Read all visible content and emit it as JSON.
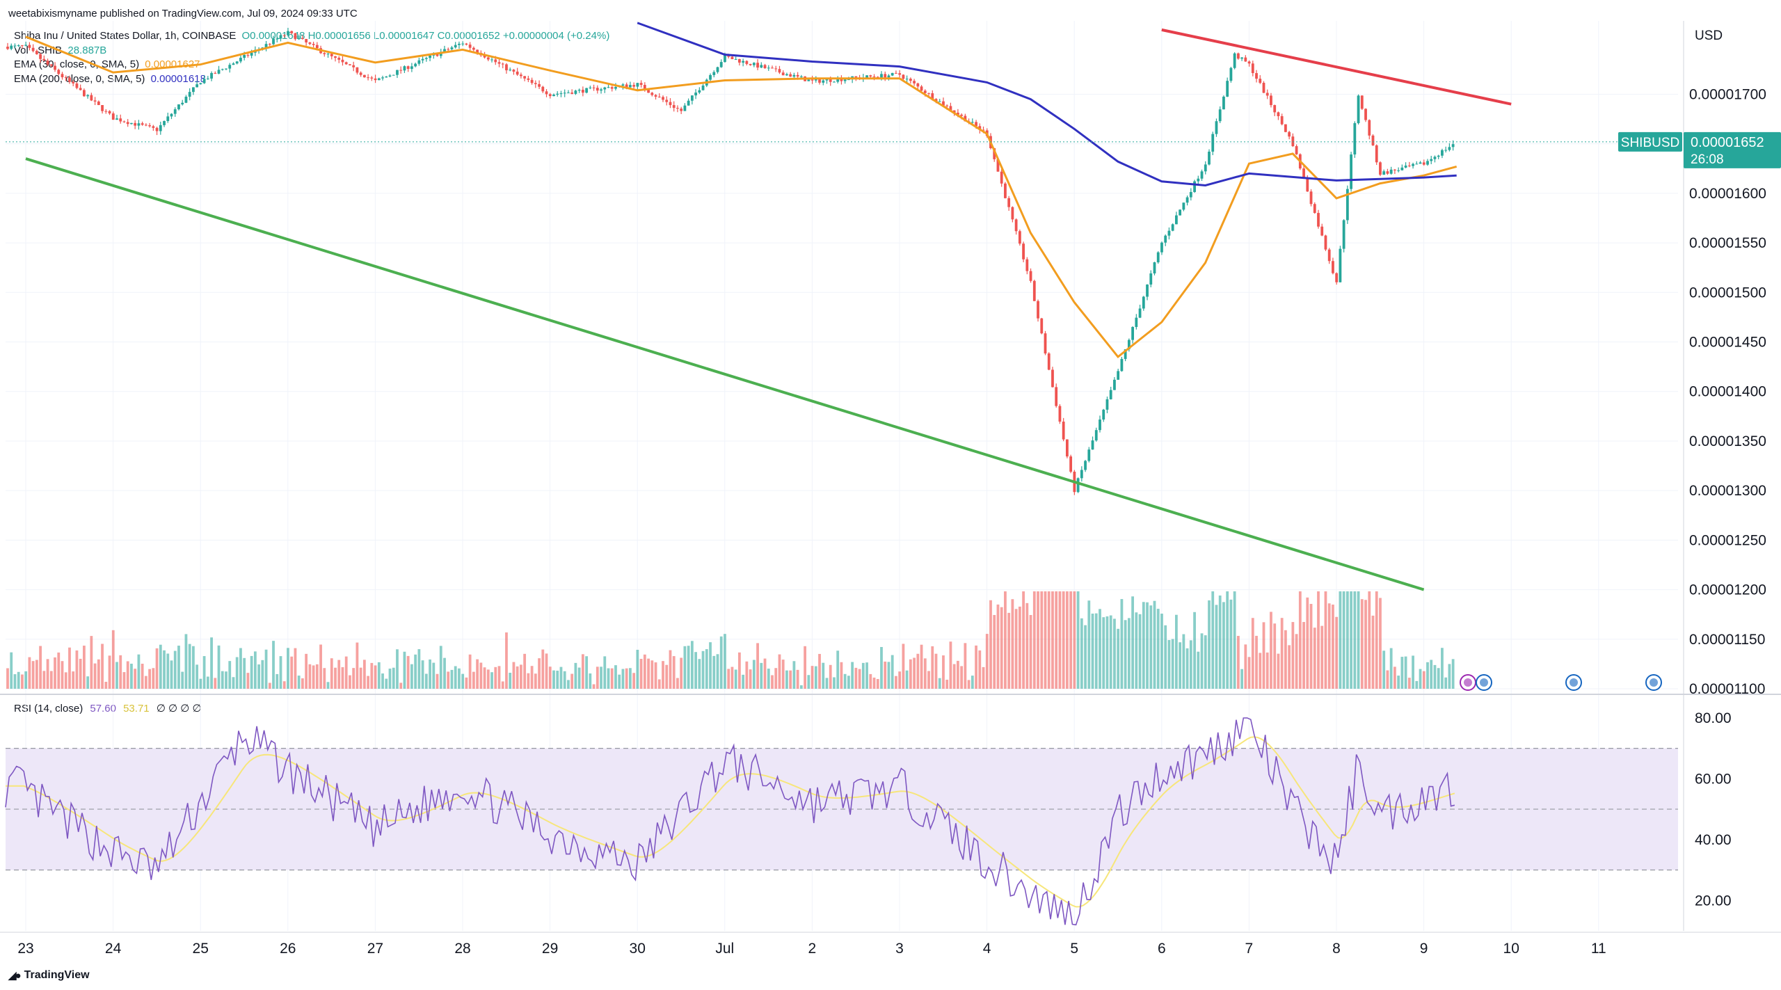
{
  "publisher_line": "weetabixismyname published on TradingView.com, Jul 09, 2024 09:33 UTC",
  "legend": {
    "symbol_line": "Shiba Inu / United States Dollar, 1h, COINBASE",
    "ohlc": "O0.00001648 H0.00001656 L0.00001647 C0.00001652 +0.00000004 (+0.24%)",
    "volume_label": "Vol · SHIB",
    "volume_value": "28.887B",
    "ema30_label": "EMA (30, close, 0, SMA, 5)",
    "ema30_value": "0.00001627",
    "ema200_label": "EMA (200, close, 0, SMA, 5)",
    "ema200_value": "0.00001618",
    "rsi_label": "RSI (14, close)",
    "rsi_value": "57.60",
    "rsi_ma_value": "53.71",
    "rsi_extra": "∅ ∅ ∅ ∅"
  },
  "price_axis": {
    "unit": "USD",
    "ticks": [
      "0.00001700",
      "0.00001650",
      "0.00001600",
      "0.00001550",
      "0.00001500",
      "0.00001450",
      "0.00001400",
      "0.00001350",
      "0.00001300",
      "0.00001250",
      "0.00001200",
      "0.00001150",
      "0.00001100"
    ],
    "symbol_badge": "SHIBUSD",
    "last_price": "0.00001652",
    "countdown": "26:08"
  },
  "rsi_axis": {
    "ticks": [
      "80.00",
      "60.00",
      "40.00",
      "20.00"
    ]
  },
  "time_axis": {
    "ticks": [
      "23",
      "24",
      "25",
      "26",
      "27",
      "28",
      "29",
      "30",
      "Jul",
      "2",
      "3",
      "4",
      "5",
      "6",
      "7",
      "8",
      "9",
      "10",
      "11"
    ]
  },
  "footer": {
    "brand": "TradingView"
  },
  "colors": {
    "up": "#26a69a",
    "down": "#ef5350",
    "ema30": "#f29d1f",
    "ema200": "#3030c0",
    "support_line": "#4caf50",
    "resistance_line": "#e53e4a",
    "rsi_line": "#7e57c2",
    "rsi_ma": "#f7e67a",
    "rsi_band": "#ede7f8",
    "badge": "#26a69a"
  },
  "chart_data": {
    "type": "candlestick",
    "symbol": "SHIBUSD",
    "interval": "1h",
    "ylim": [
      1.1e-05,
      1.76e-05
    ],
    "rsi_ylim": [
      10,
      85
    ],
    "close_series": {
      "name": "close (approx.)",
      "points": [
        [
          "2024-06-23",
          1.748e-05
        ],
        [
          "2024-06-24",
          1.676e-05
        ],
        [
          "2024-06-24T12:00",
          1.664e-05
        ],
        [
          "2024-06-25",
          1.713e-05
        ],
        [
          "2024-06-26",
          1.762e-05
        ],
        [
          "2024-06-27",
          1.713e-05
        ],
        [
          "2024-06-28",
          1.752e-05
        ],
        [
          "2024-06-29",
          1.7e-05
        ],
        [
          "2024-06-30",
          1.71e-05
        ],
        [
          "2024-06-30T12:00",
          1.683e-05
        ],
        [
          "2024-07-01",
          1.738e-05
        ],
        [
          "2024-07-02",
          1.713e-05
        ],
        [
          "2024-07-03",
          1.72e-05
        ],
        [
          "2024-07-04",
          1.66e-05
        ],
        [
          "2024-07-04T12:00",
          1.51e-05
        ],
        [
          "2024-07-05",
          1.3e-05
        ],
        [
          "2024-07-05T12:00",
          1.42e-05
        ],
        [
          "2024-07-06",
          1.55e-05
        ],
        [
          "2024-07-06T12:00",
          1.63e-05
        ],
        [
          "2024-07-06T20:00",
          1.74e-05
        ],
        [
          "2024-07-07",
          1.73e-05
        ],
        [
          "2024-07-07T12:00",
          1.65e-05
        ],
        [
          "2024-07-08",
          1.51e-05
        ],
        [
          "2024-07-08T06:00",
          1.7e-05
        ],
        [
          "2024-07-08T12:00",
          1.62e-05
        ],
        [
          "2024-07-09",
          1.63e-05
        ],
        [
          "2024-07-09T09:00",
          1.652e-05
        ]
      ]
    },
    "ema30_points": [
      [
        "2024-06-23",
        1.758e-05
      ],
      [
        "2024-06-24",
        1.722e-05
      ],
      [
        "2024-06-25",
        1.73e-05
      ],
      [
        "2024-06-26",
        1.752e-05
      ],
      [
        "2024-06-27",
        1.732e-05
      ],
      [
        "2024-06-28",
        1.745e-05
      ],
      [
        "2024-06-29",
        1.724e-05
      ],
      [
        "2024-06-30",
        1.704e-05
      ],
      [
        "2024-07-01",
        1.714e-05
      ],
      [
        "2024-07-02",
        1.716e-05
      ],
      [
        "2024-07-03",
        1.716e-05
      ],
      [
        "2024-07-04",
        1.66e-05
      ],
      [
        "2024-07-04T12:00",
        1.56e-05
      ],
      [
        "2024-07-05",
        1.49e-05
      ],
      [
        "2024-07-05T12:00",
        1.435e-05
      ],
      [
        "2024-07-06",
        1.47e-05
      ],
      [
        "2024-07-06T12:00",
        1.53e-05
      ],
      [
        "2024-07-07",
        1.63e-05
      ],
      [
        "2024-07-07T12:00",
        1.64e-05
      ],
      [
        "2024-07-08",
        1.595e-05
      ],
      [
        "2024-07-08T12:00",
        1.61e-05
      ],
      [
        "2024-07-09",
        1.618e-05
      ],
      [
        "2024-07-09T09:00",
        1.627e-05
      ]
    ],
    "ema200_points": [
      [
        "2024-06-30",
        1.772e-05
      ],
      [
        "2024-07-01",
        1.74e-05
      ],
      [
        "2024-07-02",
        1.733e-05
      ],
      [
        "2024-07-03",
        1.728e-05
      ],
      [
        "2024-07-04",
        1.712e-05
      ],
      [
        "2024-07-04T12:00",
        1.695e-05
      ],
      [
        "2024-07-05",
        1.665e-05
      ],
      [
        "2024-07-05T12:00",
        1.632e-05
      ],
      [
        "2024-07-06",
        1.612e-05
      ],
      [
        "2024-07-06T12:00",
        1.608e-05
      ],
      [
        "2024-07-07",
        1.62e-05
      ],
      [
        "2024-07-08",
        1.613e-05
      ],
      [
        "2024-07-09",
        1.616e-05
      ],
      [
        "2024-07-09T09:00",
        1.618e-05
      ]
    ],
    "trendlines": [
      {
        "name": "support",
        "from": [
          "2024-06-23",
          1.635e-05
        ],
        "to": [
          "2024-07-09",
          1.2e-05
        ]
      },
      {
        "name": "resistance",
        "from": [
          "2024-07-06",
          1.765e-05
        ],
        "to": [
          "2024-07-10",
          1.69e-05
        ]
      }
    ],
    "volume_bars": [],
    "rsi": {
      "upper_band": 70,
      "lower_band": 30,
      "middle": 50,
      "points": [
        [
          "2024-06-23",
          55
        ],
        [
          "2024-06-24",
          36
        ],
        [
          "2024-06-24T12:00",
          30
        ],
        [
          "2024-06-25",
          52
        ],
        [
          "2024-06-25T12:00",
          74
        ],
        [
          "2024-06-26",
          63
        ],
        [
          "2024-06-27",
          43
        ],
        [
          "2024-06-28",
          58
        ],
        [
          "2024-06-29",
          42
        ],
        [
          "2024-06-30",
          32
        ],
        [
          "2024-07-01",
          66
        ],
        [
          "2024-07-02",
          52
        ],
        [
          "2024-07-03",
          57
        ],
        [
          "2024-07-04",
          33
        ],
        [
          "2024-07-04T12:00",
          22
        ],
        [
          "2024-07-05",
          14
        ],
        [
          "2024-07-05T12:00",
          48
        ],
        [
          "2024-07-06",
          62
        ],
        [
          "2024-07-06T12:00",
          68
        ],
        [
          "2024-07-07",
          78
        ],
        [
          "2024-07-07T12:00",
          50
        ],
        [
          "2024-07-08",
          32
        ],
        [
          "2024-07-08T06:00",
          65
        ],
        [
          "2024-07-08T12:00",
          48
        ],
        [
          "2024-07-09",
          54
        ],
        [
          "2024-07-09T09:00",
          57.6
        ]
      ]
    }
  }
}
